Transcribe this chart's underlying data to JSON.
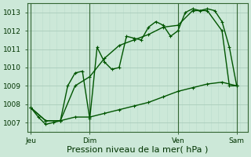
{
  "title": "Pression niveau de la mer( hPa )",
  "bg_color": "#cce8d8",
  "plot_bg_color": "#cce8d8",
  "grid_major_color": "#aaccbb",
  "grid_minor_color": "#bbddcc",
  "line_color": "#005500",
  "ylim": [
    1006.5,
    1013.5
  ],
  "yticks": [
    1007,
    1008,
    1009,
    1010,
    1011,
    1012,
    1013
  ],
  "xlabel_color": "#003300",
  "day_labels": [
    "Jeu",
    "Dim",
    "Ven",
    "Sam"
  ],
  "day_positions": [
    0,
    8,
    20,
    28
  ],
  "vline_color": "#336633",
  "series1": [
    [
      0,
      1007.8
    ],
    [
      1,
      1007.3
    ],
    [
      2,
      1006.9
    ],
    [
      3,
      1007.0
    ],
    [
      4,
      1007.1
    ],
    [
      5,
      1009.0
    ],
    [
      6,
      1009.7
    ],
    [
      7,
      1009.8
    ],
    [
      8,
      1007.2
    ],
    [
      9,
      1011.1
    ],
    [
      10,
      1010.3
    ],
    [
      11,
      1009.9
    ],
    [
      12,
      1010.0
    ],
    [
      13,
      1011.7
    ],
    [
      14,
      1011.6
    ],
    [
      15,
      1011.5
    ],
    [
      16,
      1012.2
    ],
    [
      17,
      1012.5
    ],
    [
      18,
      1012.3
    ],
    [
      19,
      1011.7
    ],
    [
      20,
      1012.0
    ],
    [
      21,
      1013.0
    ],
    [
      22,
      1013.2
    ],
    [
      23,
      1013.1
    ],
    [
      24,
      1013.2
    ],
    [
      25,
      1013.1
    ],
    [
      26,
      1012.5
    ],
    [
      27,
      1011.1
    ],
    [
      28,
      1009.0
    ]
  ],
  "series2": [
    [
      0,
      1007.8
    ],
    [
      2,
      1007.1
    ],
    [
      4,
      1007.1
    ],
    [
      6,
      1009.0
    ],
    [
      8,
      1009.5
    ],
    [
      10,
      1010.5
    ],
    [
      12,
      1011.2
    ],
    [
      14,
      1011.5
    ],
    [
      16,
      1011.8
    ],
    [
      18,
      1012.2
    ],
    [
      20,
      1012.3
    ],
    [
      22,
      1013.1
    ],
    [
      24,
      1013.1
    ],
    [
      26,
      1012.0
    ],
    [
      27,
      1009.0
    ],
    [
      28,
      1009.0
    ]
  ],
  "series3": [
    [
      0,
      1007.8
    ],
    [
      2,
      1007.1
    ],
    [
      4,
      1007.1
    ],
    [
      6,
      1007.3
    ],
    [
      8,
      1007.3
    ],
    [
      10,
      1007.5
    ],
    [
      12,
      1007.7
    ],
    [
      14,
      1007.9
    ],
    [
      16,
      1008.1
    ],
    [
      18,
      1008.4
    ],
    [
      20,
      1008.7
    ],
    [
      22,
      1008.9
    ],
    [
      24,
      1009.1
    ],
    [
      26,
      1009.2
    ],
    [
      28,
      1009.0
    ]
  ],
  "xlim": [
    -0.5,
    29.5
  ],
  "markersize": 3,
  "linewidth": 1.0,
  "title_fontsize": 8,
  "tick_fontsize": 6.5
}
